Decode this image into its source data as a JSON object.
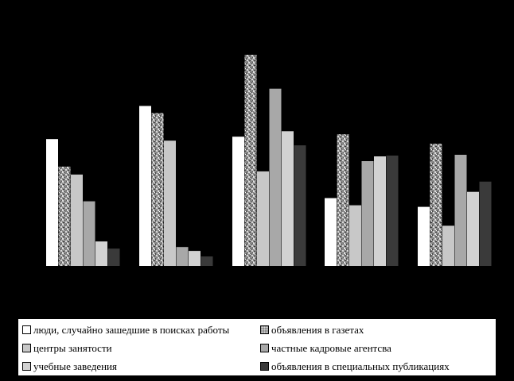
{
  "chart_data": {
    "type": "bar",
    "title": "",
    "xlabel": "",
    "ylabel": "",
    "categories": [
      "",
      "",
      "",
      "",
      ""
    ],
    "ylim": [
      0,
      270
    ],
    "grid": false,
    "legend_position": "bottom",
    "series": [
      {
        "name": "люди, случайно зашедшие в поисках работы",
        "color": "#ffffff",
        "pattern": "solid",
        "values": [
          161,
          203,
          164,
          86,
          75
        ]
      },
      {
        "name": "объявления в газетах",
        "color": "#9a9a9a",
        "pattern": "granite",
        "values": [
          126,
          194,
          268,
          167,
          155
        ]
      },
      {
        "name": "центры занятости",
        "color": "#c8c8c8",
        "pattern": "solid",
        "values": [
          116,
          159,
          120,
          77,
          51
        ]
      },
      {
        "name": "частные кадровые агентсва",
        "color": "#a8a8a8",
        "pattern": "solid",
        "values": [
          82,
          24,
          225,
          133,
          141
        ]
      },
      {
        "name": "учебные заведения",
        "color": "#d2d2d2",
        "pattern": "solid",
        "values": [
          31,
          19,
          171,
          139,
          94
        ]
      },
      {
        "name": "объявления в специальных публикациях",
        "color": "#3a3a3a",
        "pattern": "solid",
        "values": [
          22,
          12,
          153,
          140,
          107
        ]
      }
    ]
  }
}
